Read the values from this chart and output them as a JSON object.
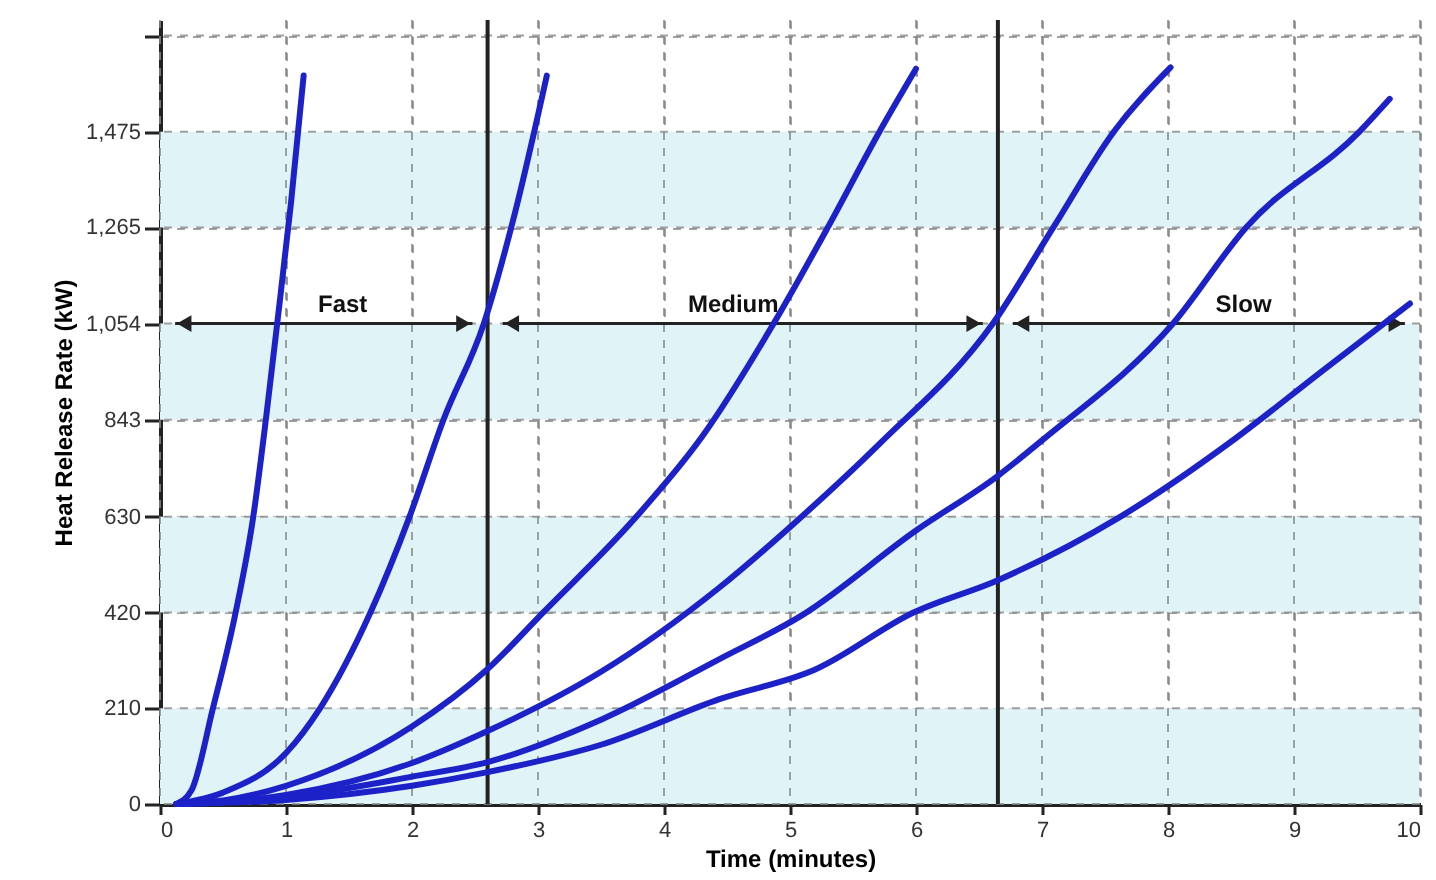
{
  "chart_data": {
    "type": "line",
    "xlabel": "Time (minutes)",
    "ylabel": "Heat Release Rate (kW)",
    "xlim": [
      0,
      10
    ],
    "ylim": [
      0,
      1720
    ],
    "xticks": [
      0,
      1,
      2,
      3,
      4,
      5,
      6,
      7,
      8,
      9,
      10
    ],
    "yticks": [
      0,
      210,
      420,
      630,
      843,
      {
        "value": 1054,
        "label": "1,054"
      },
      {
        "value": 1265,
        "label": "1,265"
      },
      {
        "value": 1475,
        "label": "1,475"
      },
      {
        "value": 1686,
        "label": null
      }
    ],
    "grid": true,
    "line_style": "solid",
    "series": [
      {
        "color": "#1c22c8",
        "x": [
          0.13,
          0.25,
          0.42,
          0.6,
          0.74,
          0.84,
          0.93,
          1.04,
          1.14
        ],
        "values": [
          0,
          30,
          210,
          420,
          630,
          843,
          1054,
          1320,
          1598
        ]
      },
      {
        "color": "#1c22c8",
        "x": [
          0.13,
          0.5,
          1,
          1.27,
          1.67,
          1.98,
          2.25,
          2.57,
          2.82,
          3.07
        ],
        "values": [
          0,
          25,
          112,
          210,
          420,
          630,
          843,
          1054,
          1300,
          1598
        ]
      },
      {
        "color": "#1c22c8",
        "x": [
          0.13,
          0.5,
          1,
          2,
          2.6,
          3.04,
          3.78,
          4.3,
          4.87,
          5.3,
          5.71,
          6.0
        ],
        "values": [
          0,
          8,
          40,
          170,
          296,
          420,
          630,
          805,
          1054,
          1265,
          1475,
          1613
        ]
      },
      {
        "color": "#1c22c8",
        "x": [
          0.13,
          0.5,
          1,
          2,
          2.6,
          3.5,
          4.44,
          5.03,
          5.71,
          6.61,
          7.09,
          7.57,
          8.02
        ],
        "values": [
          0,
          4,
          20,
          90,
          160,
          290,
          475,
          615,
          790,
          1054,
          1265,
          1475,
          1616
        ]
      },
      {
        "color": "#1c22c8",
        "x": [
          0.13,
          1,
          2,
          2.6,
          3.5,
          4.44,
          5.1,
          6.0,
          6.65,
          7.01,
          8.04,
          8.62,
          9.52,
          9.76
        ],
        "values": [
          0,
          15,
          60,
          92,
          185,
          318,
          415,
          600,
          720,
          800,
          1054,
          1265,
          1475,
          1547
        ]
      },
      {
        "color": "#1c22c8",
        "x": [
          0.13,
          1,
          2,
          2.6,
          3.5,
          4.44,
          5.2,
          5.98,
          6.65,
          7.62,
          8.54,
          9.2,
          9.92
        ],
        "values": [
          0,
          9,
          40,
          70,
          130,
          230,
          295,
          420,
          491,
          630,
          803,
          945,
          1098
        ]
      }
    ],
    "bands": [
      {
        "axis": "y",
        "from": 0,
        "to": 210,
        "color": "#e0f4f8"
      },
      {
        "axis": "y",
        "from": 420,
        "to": 630,
        "color": "#e0f4f8"
      },
      {
        "axis": "y",
        "from": 843,
        "to": 1054,
        "color": "#e0f4f8"
      },
      {
        "axis": "y",
        "from": 1265,
        "to": 1475,
        "color": "#e0f4f8"
      }
    ],
    "ref_lines": [
      {
        "axis": "x",
        "value": 2.6,
        "color": "#222222"
      },
      {
        "axis": "x",
        "value": 6.65,
        "color": "#222222"
      }
    ],
    "annotations": [
      {
        "text": "Fast",
        "x": 1.45,
        "y": 1054
      },
      {
        "text": "Medium",
        "x": 4.55,
        "y": 1054
      },
      {
        "text": "Slow",
        "x": 8.6,
        "y": 1054
      }
    ]
  }
}
